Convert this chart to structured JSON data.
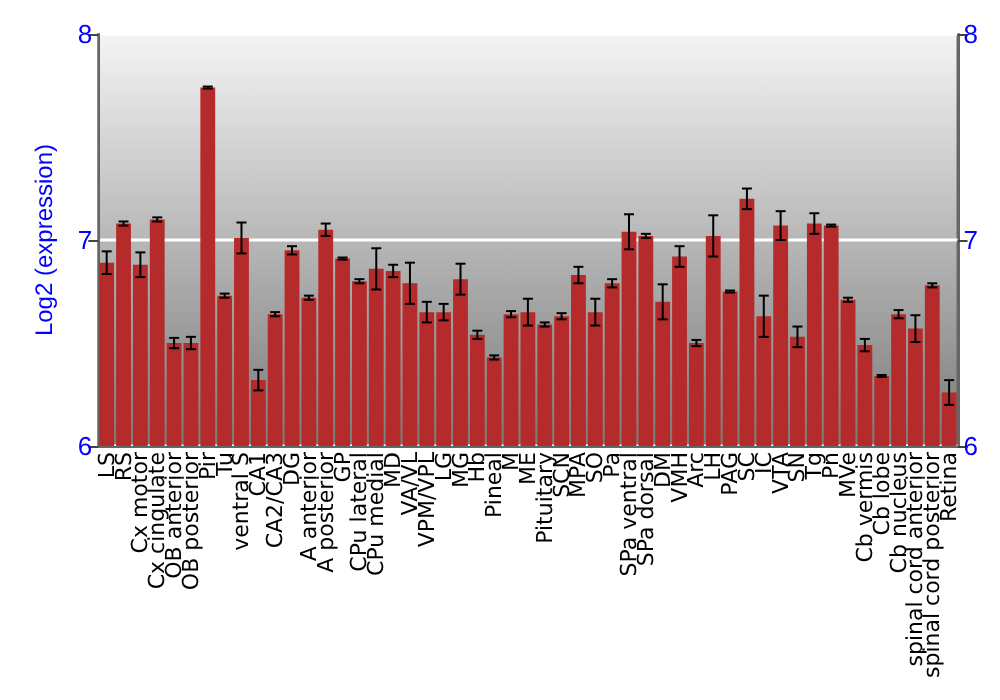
{
  "chart_data": {
    "type": "bar",
    "ylabel": "Log2 (expression)",
    "categories": [
      "LS",
      "RS",
      "Cx motor",
      "Cx cingulate",
      "OB anterior",
      "OB posterior",
      "Pir",
      "Tu",
      "ventral S",
      "CA1",
      "CA2/CA3",
      "DG",
      "A anterior",
      "A posterior",
      "GP",
      "CPu lateral",
      "CPu medial",
      "MD",
      "VA/VL",
      "VPM/VPL",
      "LG",
      "MG",
      "Hb",
      "Pineal",
      "M",
      "ME",
      "Pituitary",
      "SCN",
      "MPA",
      "SO",
      "Pa",
      "SPa ventral",
      "SPa dorsal",
      "DM",
      "VMH",
      "Arc",
      "LH",
      "PAG",
      "SC",
      "IC",
      "VTA",
      "SN",
      "Tg",
      "Pn",
      "MVe",
      "Cb vermis",
      "Cb lobe",
      "Cb nucleus",
      "spinal cord anterior",
      "spinal cord posterior",
      "Retina"
    ],
    "values": [
      6.89,
      7.08,
      6.88,
      7.1,
      6.5,
      6.5,
      7.74,
      6.73,
      7.01,
      6.32,
      6.64,
      6.95,
      6.72,
      7.05,
      6.91,
      6.8,
      6.86,
      6.85,
      6.79,
      6.65,
      6.65,
      6.81,
      6.54,
      6.43,
      6.64,
      6.65,
      6.59,
      6.63,
      6.83,
      6.65,
      6.79,
      7.04,
      7.02,
      6.7,
      6.92,
      6.5,
      7.02,
      6.75,
      7.2,
      6.63,
      7.07,
      6.53,
      7.08,
      7.07,
      6.71,
      6.49,
      6.34,
      6.64,
      6.57,
      6.78,
      6.26
    ],
    "errors": [
      0.055,
      0.01,
      0.06,
      0.01,
      0.025,
      0.03,
      0.005,
      0.01,
      0.075,
      0.05,
      0.01,
      0.02,
      0.01,
      0.03,
      0.005,
      0.01,
      0.1,
      0.03,
      0.1,
      0.05,
      0.04,
      0.075,
      0.02,
      0.01,
      0.015,
      0.065,
      0.01,
      0.015,
      0.04,
      0.065,
      0.02,
      0.085,
      0.01,
      0.085,
      0.05,
      0.015,
      0.1,
      0.005,
      0.05,
      0.1,
      0.07,
      0.05,
      0.05,
      0.005,
      0.01,
      0.03,
      0.005,
      0.02,
      0.065,
      0.01,
      0.06
    ],
    "color": "#b52a2a",
    "ylim": [
      6,
      8
    ],
    "yticks": [
      6,
      7,
      8
    ],
    "y2lim": [
      6,
      8
    ],
    "y2ticks": [
      6,
      7,
      8
    ],
    "grid": "y"
  }
}
